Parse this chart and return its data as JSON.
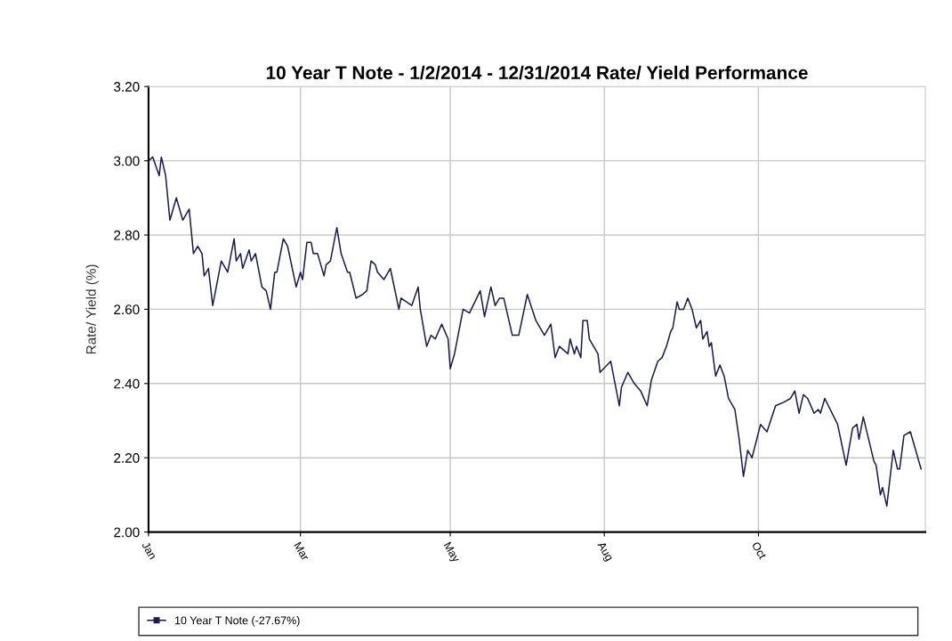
{
  "chart_data": {
    "type": "line",
    "title": "10 Year T Note - 1/2/2014 - 12/31/2014 Rate/ Yield Performance",
    "ylabel": "Rate/ Yield (%)",
    "xlim": [
      "2014-01-02",
      "2014-12-31"
    ],
    "xticks": [
      {
        "value": "2014-01-02",
        "label": "Jan"
      },
      {
        "value": "2014-03-14",
        "label": "Mar"
      },
      {
        "value": "2014-05-23",
        "label": "May"
      },
      {
        "value": "2014-08-03",
        "label": "Aug"
      },
      {
        "value": "2014-10-14",
        "label": "Oct"
      }
    ],
    "ylim": [
      2.0,
      3.2
    ],
    "yticks": [
      {
        "value": 2.0,
        "label": "2.00"
      },
      {
        "value": 2.2,
        "label": "2.20"
      },
      {
        "value": 2.4,
        "label": "2.40"
      },
      {
        "value": 2.6,
        "label": "2.60"
      },
      {
        "value": 2.8,
        "label": "2.80"
      },
      {
        "value": 3.0,
        "label": "3.00"
      },
      {
        "value": 3.2,
        "label": "3.20"
      }
    ],
    "grid": true,
    "legend": "bottom",
    "series": [
      {
        "name": "10 Year T Note (-27.67%)",
        "color": "#1b1b50",
        "x": [
          "2014-01-02",
          "2014-01-04",
          "2014-01-07",
          "2014-01-08",
          "2014-01-10",
          "2014-01-12",
          "2014-01-15",
          "2014-01-18",
          "2014-01-21",
          "2014-01-23",
          "2014-01-25",
          "2014-01-27",
          "2014-01-28",
          "2014-01-30",
          "2014-02-01",
          "2014-02-05",
          "2014-02-08",
          "2014-02-11",
          "2014-02-12",
          "2014-02-14",
          "2014-02-15",
          "2014-02-18",
          "2014-02-19",
          "2014-02-21",
          "2014-02-24",
          "2014-02-26",
          "2014-02-28",
          "2014-03-02",
          "2014-03-03",
          "2014-03-06",
          "2014-03-08",
          "2014-03-12",
          "2014-03-14",
          "2014-03-15",
          "2014-03-17",
          "2014-03-19",
          "2014-03-20",
          "2014-03-22",
          "2014-03-25",
          "2014-03-26",
          "2014-03-28",
          "2014-03-31",
          "2014-04-02",
          "2014-04-05",
          "2014-04-06",
          "2014-04-09",
          "2014-04-12",
          "2014-04-14",
          "2014-04-16",
          "2014-04-18",
          "2014-04-19",
          "2014-04-22",
          "2014-04-25",
          "2014-04-29",
          "2014-04-30",
          "2014-05-05",
          "2014-05-08",
          "2014-05-09",
          "2014-05-12",
          "2014-05-14",
          "2014-05-16",
          "2014-05-19",
          "2014-05-22",
          "2014-05-23",
          "2014-05-25",
          "2014-05-29",
          "2014-06-01",
          "2014-06-06",
          "2014-06-08",
          "2014-06-11",
          "2014-06-13",
          "2014-06-15",
          "2014-06-17",
          "2014-06-21",
          "2014-06-24",
          "2014-06-28",
          "2014-07-02",
          "2014-07-06",
          "2014-07-09",
          "2014-07-11",
          "2014-07-13",
          "2014-07-17",
          "2014-07-18",
          "2014-07-20",
          "2014-07-21",
          "2014-07-23",
          "2014-07-24",
          "2014-07-26",
          "2014-07-27",
          "2014-07-31",
          "2014-08-01",
          "2014-08-06",
          "2014-08-08",
          "2014-08-10",
          "2014-08-11",
          "2014-08-14",
          "2014-08-17",
          "2014-08-20",
          "2014-08-23",
          "2014-08-25",
          "2014-08-28",
          "2014-08-30",
          "2014-09-01",
          "2014-09-03",
          "2014-09-04",
          "2014-09-06",
          "2014-09-07",
          "2014-09-09",
          "2014-09-11",
          "2014-09-13",
          "2014-09-15",
          "2014-09-17",
          "2014-09-18",
          "2014-09-20",
          "2014-09-21",
          "2014-09-22",
          "2014-09-24",
          "2014-09-26",
          "2014-09-28",
          "2014-09-30",
          "2014-10-03",
          "2014-10-05",
          "2014-10-07",
          "2014-10-09",
          "2014-10-11",
          "2014-10-15",
          "2014-10-18",
          "2014-10-22",
          "2014-10-26",
          "2014-10-29",
          "2014-10-31",
          "2014-11-02",
          "2014-11-04",
          "2014-11-06",
          "2014-11-09",
          "2014-11-11",
          "2014-11-12",
          "2014-11-14",
          "2014-11-20",
          "2014-11-24",
          "2014-11-27",
          "2014-11-29",
          "2014-11-30",
          "2014-12-02",
          "2014-12-07",
          "2014-12-08",
          "2014-12-10",
          "2014-12-11",
          "2014-12-13",
          "2014-12-16",
          "2014-12-18",
          "2014-12-19",
          "2014-12-21",
          "2014-12-24",
          "2014-12-29"
        ],
        "values": [
          3.0,
          3.01,
          2.96,
          3.01,
          2.96,
          2.84,
          2.9,
          2.84,
          2.87,
          2.75,
          2.77,
          2.75,
          2.69,
          2.71,
          2.61,
          2.73,
          2.7,
          2.79,
          2.73,
          2.75,
          2.71,
          2.76,
          2.73,
          2.75,
          2.66,
          2.65,
          2.6,
          2.7,
          2.7,
          2.79,
          2.77,
          2.66,
          2.7,
          2.68,
          2.78,
          2.78,
          2.75,
          2.75,
          2.69,
          2.72,
          2.73,
          2.82,
          2.75,
          2.7,
          2.7,
          2.63,
          2.64,
          2.65,
          2.73,
          2.72,
          2.7,
          2.68,
          2.71,
          2.6,
          2.63,
          2.61,
          2.66,
          2.6,
          2.5,
          2.53,
          2.52,
          2.56,
          2.52,
          2.44,
          2.48,
          2.6,
          2.59,
          2.65,
          2.58,
          2.66,
          2.61,
          2.63,
          2.63,
          2.53,
          2.53,
          2.64,
          2.57,
          2.53,
          2.56,
          2.47,
          2.5,
          2.48,
          2.52,
          2.48,
          2.5,
          2.47,
          2.57,
          2.57,
          2.52,
          2.48,
          2.43,
          2.46,
          2.4,
          2.34,
          2.39,
          2.43,
          2.4,
          2.38,
          2.34,
          2.41,
          2.46,
          2.47,
          2.5,
          2.54,
          2.55,
          2.62,
          2.6,
          2.6,
          2.63,
          2.6,
          2.55,
          2.57,
          2.52,
          2.54,
          2.5,
          2.51,
          2.42,
          2.45,
          2.42,
          2.36,
          2.33,
          2.25,
          2.15,
          2.22,
          2.2,
          2.29,
          2.27,
          2.34,
          2.35,
          2.36,
          2.38,
          2.32,
          2.37,
          2.36,
          2.32,
          2.33,
          2.32,
          2.36,
          2.29,
          2.18,
          2.28,
          2.29,
          2.25,
          2.31,
          2.19,
          2.18,
          2.1,
          2.12,
          2.07,
          2.22,
          2.17,
          2.17,
          2.26,
          2.27,
          2.17
        ]
      }
    ]
  }
}
